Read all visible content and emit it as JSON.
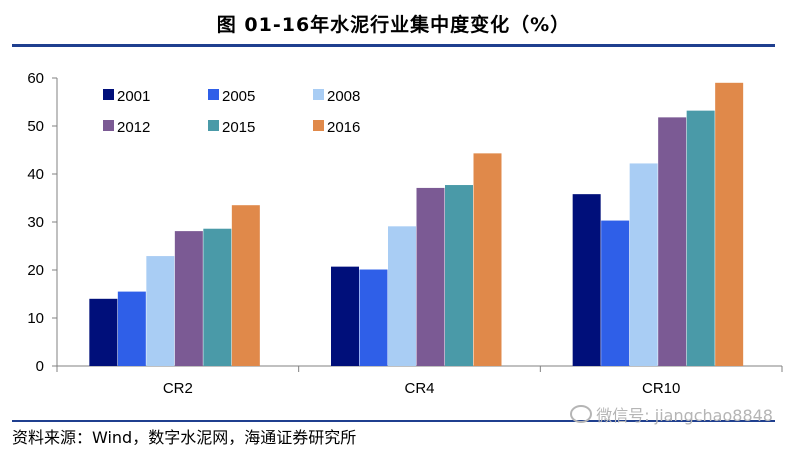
{
  "title": "图 01-16年水泥行业集中度变化（%）",
  "source": "资料来源：Wind，数字水泥网，海通证券研究所",
  "watermark": "微信号: jiangchao8848",
  "chart_data": {
    "type": "bar",
    "categories": [
      "CR2",
      "CR4",
      "CR10"
    ],
    "series": [
      {
        "name": "2001",
        "color": "#000f7a",
        "values": [
          14,
          20.7,
          35.8
        ]
      },
      {
        "name": "2005",
        "color": "#2f5fe8",
        "values": [
          15.5,
          20.1,
          30.3
        ]
      },
      {
        "name": "2008",
        "color": "#a9cdf4",
        "values": [
          22.9,
          29.1,
          42.2
        ]
      },
      {
        "name": "2012",
        "color": "#7b5a94",
        "values": [
          28.1,
          37.1,
          51.8
        ]
      },
      {
        "name": "2015",
        "color": "#4a9aa8",
        "values": [
          28.6,
          37.7,
          53.2
        ]
      },
      {
        "name": "2016",
        "color": "#e0894a",
        "values": [
          33.5,
          44.3,
          59
        ]
      }
    ],
    "ylim": [
      0,
      60
    ],
    "yticks": [
      0,
      10,
      20,
      30,
      40,
      50,
      60
    ],
    "xlabel": "",
    "ylabel": "",
    "legend_position": "top-left",
    "grid": false
  }
}
